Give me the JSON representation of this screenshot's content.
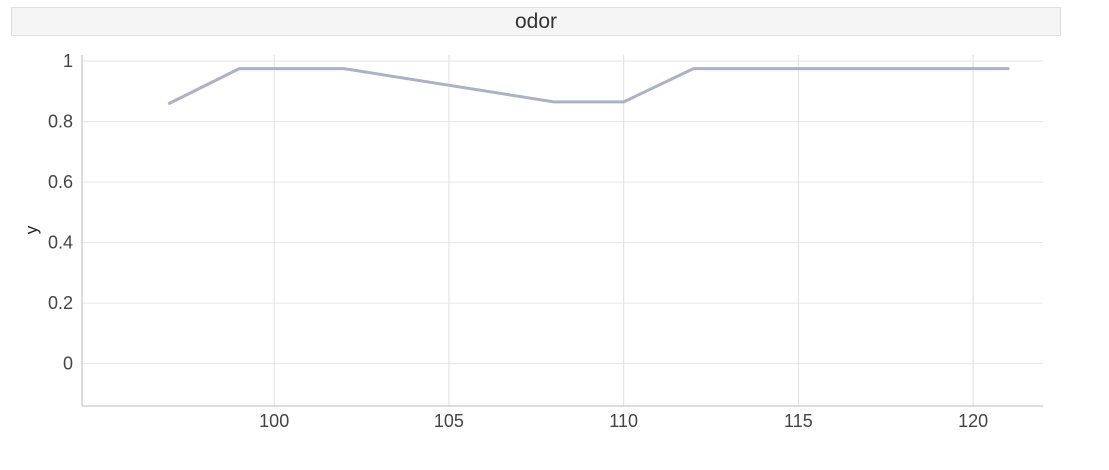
{
  "panel": {
    "title": "odor"
  },
  "chart_data": {
    "type": "line",
    "title": "odor",
    "xlabel": "",
    "ylabel": "y",
    "xlim": [
      94.5,
      122
    ],
    "ylim": [
      -0.14,
      1.02
    ],
    "x_ticks": [
      100,
      105,
      110,
      115,
      120
    ],
    "y_ticks": [
      0,
      0.2,
      0.4,
      0.6,
      0.8,
      1
    ],
    "grid": true,
    "series": [
      {
        "color": "#aab2c4",
        "x": [
          97,
          99,
          102,
          108,
          110,
          112,
          121
        ],
        "y": [
          0.86,
          0.975,
          0.975,
          0.865,
          0.865,
          0.975,
          0.975
        ]
      }
    ]
  }
}
